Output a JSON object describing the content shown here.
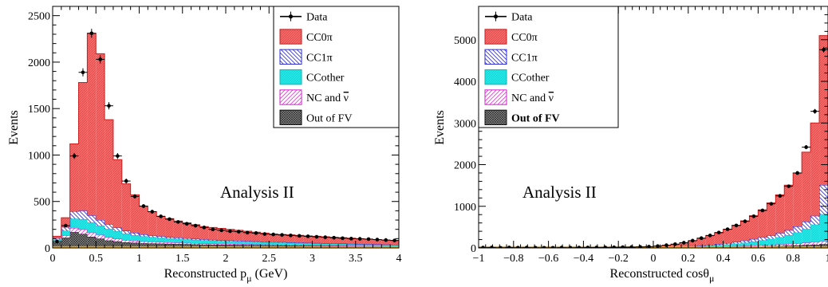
{
  "colors": {
    "cc0pi": "#f26b6b",
    "cc0pi_hatch": "#e03a3a",
    "cc1pi": "#2e2ed6",
    "ccother": "#22e6e6",
    "nc": "#e03ad8",
    "oofv": "#7a7a7a",
    "data": "#000000",
    "baseline": "#f5a500"
  },
  "chart_data": [
    {
      "type": "bar",
      "stacked": true,
      "annotation": "Analysis II",
      "xlabel_main": "Reconstructed p",
      "xlabel_sub": "μ",
      "xlabel_unit": " (GeV)",
      "ylabel": "Events",
      "xlim": [
        0,
        4
      ],
      "ylim": [
        0,
        2600
      ],
      "xticks": [
        0,
        0.5,
        1,
        1.5,
        2,
        2.5,
        3,
        3.5,
        4
      ],
      "xtick_labels": [
        "0",
        "0.5",
        "1",
        "1.5",
        "2",
        "2.5",
        "3",
        "3.5",
        "4"
      ],
      "yticks": [
        0,
        500,
        1000,
        1500,
        2000,
        2500
      ],
      "ytick_labels": [
        "0",
        "500",
        "1000",
        "1500",
        "2000",
        "2500"
      ],
      "bin_edges": [
        0,
        0.1,
        0.2,
        0.3,
        0.4,
        0.5,
        0.6,
        0.7,
        0.8,
        0.9,
        1.0,
        1.1,
        1.2,
        1.3,
        1.4,
        1.5,
        1.6,
        1.7,
        1.8,
        1.9,
        2.0,
        2.1,
        2.2,
        2.3,
        2.4,
        2.5,
        2.6,
        2.7,
        2.8,
        2.9,
        3.0,
        3.1,
        3.2,
        3.3,
        3.4,
        3.5,
        3.6,
        3.7,
        3.8,
        3.9,
        4.0
      ],
      "legend": {
        "position": "top-right",
        "entries": [
          {
            "key": "data",
            "label": "Data",
            "bold": false
          },
          {
            "key": "cc0pi",
            "label": "CC0π",
            "bold": false
          },
          {
            "key": "cc1pi",
            "label": "CC1π",
            "bold": false
          },
          {
            "key": "ccother",
            "label": "CCother",
            "bold": false
          },
          {
            "key": "nc",
            "label": "NC and ",
            "bar": "ν",
            "bold": false
          },
          {
            "key": "oofv",
            "label": "Out of FV",
            "bold": false
          }
        ]
      },
      "stack_order": [
        "oofv",
        "nc",
        "ccother",
        "cc1pi",
        "cc0pi"
      ],
      "series": [
        {
          "key": "oofv",
          "values": [
            60,
            110,
            170,
            150,
            120,
            100,
            80,
            70,
            60,
            55,
            50,
            48,
            46,
            44,
            42,
            40,
            38,
            36,
            35,
            34,
            33,
            32,
            31,
            30,
            29,
            28,
            27,
            26,
            25,
            24,
            23,
            22,
            21,
            20,
            19,
            18,
            17,
            16,
            15,
            14
          ]
        },
        {
          "key": "nc",
          "values": [
            10,
            25,
            45,
            50,
            45,
            40,
            35,
            30,
            25,
            22,
            20,
            18,
            17,
            16,
            15,
            14,
            13,
            12,
            11,
            10,
            10,
            9,
            9,
            8,
            8,
            8,
            7,
            7,
            7,
            6,
            6,
            6,
            6,
            5,
            5,
            5,
            5,
            5,
            4,
            4
          ]
        },
        {
          "key": "ccother",
          "values": [
            20,
            50,
            100,
            110,
            110,
            100,
            90,
            80,
            70,
            60,
            55,
            50,
            46,
            42,
            40,
            38,
            36,
            34,
            32,
            30,
            29,
            28,
            27,
            26,
            25,
            24,
            23,
            22,
            21,
            20,
            20,
            19,
            18,
            18,
            17,
            16,
            16,
            15,
            15,
            14
          ]
        },
        {
          "key": "cc1pi",
          "values": [
            15,
            40,
            80,
            90,
            75,
            60,
            50,
            40,
            30,
            25,
            20,
            18,
            16,
            14,
            13,
            12,
            11,
            10,
            9,
            9,
            8,
            8,
            7,
            7,
            6,
            6,
            6,
            5,
            5,
            5,
            4,
            4,
            4,
            4,
            3,
            3,
            3,
            3,
            3,
            3
          ]
        },
        {
          "key": "cc0pi",
          "values": [
            20,
            100,
            725,
            1380,
            1960,
            1790,
            1125,
            730,
            505,
            410,
            305,
            256,
            215,
            199,
            180,
            166,
            152,
            138,
            133,
            127,
            120,
            113,
            106,
            99,
            92,
            84,
            82,
            80,
            77,
            75,
            72,
            69,
            66,
            63,
            61,
            58,
            54,
            51,
            48,
            45
          ]
        }
      ],
      "data_points": [
        {
          "x": 0.05,
          "y": 70
        },
        {
          "x": 0.15,
          "y": 240
        },
        {
          "x": 0.25,
          "y": 990
        },
        {
          "x": 0.35,
          "y": 1890
        },
        {
          "x": 0.45,
          "y": 2310
        },
        {
          "x": 0.55,
          "y": 2030
        },
        {
          "x": 0.65,
          "y": 1530
        },
        {
          "x": 0.75,
          "y": 990
        },
        {
          "x": 0.85,
          "y": 720
        },
        {
          "x": 0.95,
          "y": 555
        },
        {
          "x": 1.05,
          "y": 450
        },
        {
          "x": 1.15,
          "y": 390
        },
        {
          "x": 1.25,
          "y": 340
        },
        {
          "x": 1.35,
          "y": 310
        },
        {
          "x": 1.45,
          "y": 280
        },
        {
          "x": 1.55,
          "y": 260
        },
        {
          "x": 1.65,
          "y": 240
        },
        {
          "x": 1.75,
          "y": 220
        },
        {
          "x": 1.85,
          "y": 200
        },
        {
          "x": 1.95,
          "y": 190
        },
        {
          "x": 2.05,
          "y": 180
        },
        {
          "x": 2.15,
          "y": 175
        },
        {
          "x": 2.25,
          "y": 165
        },
        {
          "x": 2.35,
          "y": 160
        },
        {
          "x": 2.45,
          "y": 150
        },
        {
          "x": 2.55,
          "y": 145
        },
        {
          "x": 2.65,
          "y": 140
        },
        {
          "x": 2.75,
          "y": 135
        },
        {
          "x": 2.85,
          "y": 130
        },
        {
          "x": 2.95,
          "y": 125
        },
        {
          "x": 3.05,
          "y": 120
        },
        {
          "x": 3.15,
          "y": 115
        },
        {
          "x": 3.25,
          "y": 110
        },
        {
          "x": 3.35,
          "y": 105
        },
        {
          "x": 3.45,
          "y": 100
        },
        {
          "x": 3.55,
          "y": 98
        },
        {
          "x": 3.65,
          "y": 95
        },
        {
          "x": 3.75,
          "y": 90
        },
        {
          "x": 3.85,
          "y": 85
        },
        {
          "x": 3.95,
          "y": 80
        }
      ]
    },
    {
      "type": "bar",
      "stacked": true,
      "annotation": "Analysis II",
      "xlabel_main": "Reconstructed cosθ",
      "xlabel_sub": "μ",
      "xlabel_unit": "",
      "ylabel": "Events",
      "xlim": [
        -1,
        1
      ],
      "ylim": [
        0,
        5800
      ],
      "xticks": [
        -1,
        -0.8,
        -0.6,
        -0.4,
        -0.2,
        0,
        0.2,
        0.4,
        0.6,
        0.8,
        1
      ],
      "xtick_labels": [
        "−1",
        "−0.8",
        "−0.6",
        "−0.4",
        "−0.2",
        "0",
        "0.2",
        "0.4",
        "0.6",
        "0.8",
        "1"
      ],
      "yticks": [
        0,
        1000,
        2000,
        3000,
        4000,
        5000
      ],
      "ytick_labels": [
        "0",
        "1000",
        "2000",
        "3000",
        "4000",
        "5000"
      ],
      "bin_edges": [
        -1,
        -0.95,
        -0.9,
        -0.85,
        -0.8,
        -0.75,
        -0.7,
        -0.65,
        -0.6,
        -0.55,
        -0.5,
        -0.45,
        -0.4,
        -0.35,
        -0.3,
        -0.25,
        -0.2,
        -0.15,
        -0.1,
        -0.05,
        0,
        0.05,
        0.1,
        0.15,
        0.2,
        0.25,
        0.3,
        0.35,
        0.4,
        0.45,
        0.5,
        0.55,
        0.6,
        0.65,
        0.7,
        0.75,
        0.8,
        0.85,
        0.9,
        0.95,
        1.0
      ],
      "legend": {
        "position": "top-left",
        "entries": [
          {
            "key": "data",
            "label": "Data",
            "bold": false
          },
          {
            "key": "cc0pi",
            "label": "CC0π",
            "bold": false
          },
          {
            "key": "cc1pi",
            "label": "CC1π",
            "bold": false
          },
          {
            "key": "ccother",
            "label": "CCother",
            "bold": false
          },
          {
            "key": "nc",
            "label": "NC and ",
            "bar": "ν",
            "bold": false
          },
          {
            "key": "oofv",
            "label": "Out of FV",
            "bold": true
          }
        ]
      },
      "stack_order": [
        "oofv",
        "nc",
        "ccother",
        "cc1pi",
        "cc0pi"
      ],
      "series": [
        {
          "key": "oofv",
          "values": [
            2,
            2,
            2,
            2,
            2,
            2,
            2,
            2,
            2,
            2,
            2,
            2,
            2,
            2,
            2,
            2,
            2,
            3,
            3,
            3,
            4,
            5,
            6,
            8,
            10,
            12,
            15,
            18,
            22,
            26,
            30,
            35,
            40,
            45,
            50,
            55,
            62,
            70,
            78,
            90
          ]
        },
        {
          "key": "nc",
          "values": [
            0,
            0,
            0,
            0,
            0,
            0,
            0,
            0,
            0,
            0,
            0,
            0,
            0,
            0,
            0,
            0,
            0,
            0,
            1,
            1,
            1,
            2,
            3,
            4,
            5,
            7,
            9,
            11,
            14,
            17,
            20,
            24,
            28,
            32,
            36,
            42,
            48,
            55,
            62,
            70
          ]
        },
        {
          "key": "ccother",
          "values": [
            0,
            0,
            0,
            0,
            0,
            0,
            0,
            0,
            0,
            0,
            0,
            0,
            0,
            0,
            0,
            0,
            1,
            1,
            2,
            3,
            4,
            6,
            9,
            12,
            16,
            22,
            30,
            38,
            48,
            60,
            75,
            95,
            115,
            140,
            170,
            210,
            260,
            330,
            420,
            650
          ]
        },
        {
          "key": "cc1pi",
          "values": [
            0,
            0,
            0,
            0,
            0,
            0,
            0,
            0,
            0,
            0,
            0,
            0,
            0,
            0,
            0,
            0,
            0,
            1,
            1,
            2,
            3,
            4,
            6,
            8,
            11,
            15,
            20,
            25,
            32,
            40,
            50,
            60,
            72,
            85,
            100,
            120,
            145,
            175,
            210,
            700
          ]
        },
        {
          "key": "cc0pi",
          "values": [
            1,
            1,
            1,
            1,
            1,
            1,
            1,
            1,
            1,
            2,
            2,
            2,
            3,
            4,
            5,
            6,
            8,
            10,
            14,
            20,
            30,
            45,
            65,
            95,
            130,
            175,
            220,
            270,
            330,
            400,
            475,
            560,
            660,
            780,
            920,
            1080,
            1285,
            1670,
            2230,
            3590
          ]
        }
      ],
      "data_points": [
        {
          "x": -0.975,
          "y": 8
        },
        {
          "x": -0.925,
          "y": 10
        },
        {
          "x": -0.875,
          "y": 5
        },
        {
          "x": -0.825,
          "y": 10
        },
        {
          "x": -0.775,
          "y": 6
        },
        {
          "x": -0.725,
          "y": 8
        },
        {
          "x": -0.675,
          "y": 6
        },
        {
          "x": -0.625,
          "y": 5
        },
        {
          "x": -0.575,
          "y": 5
        },
        {
          "x": -0.525,
          "y": 8
        },
        {
          "x": -0.475,
          "y": 6
        },
        {
          "x": -0.425,
          "y": 8
        },
        {
          "x": -0.375,
          "y": 10
        },
        {
          "x": -0.325,
          "y": 10
        },
        {
          "x": -0.275,
          "y": 12
        },
        {
          "x": -0.225,
          "y": 15
        },
        {
          "x": -0.175,
          "y": 18
        },
        {
          "x": -0.125,
          "y": 20
        },
        {
          "x": -0.075,
          "y": 25
        },
        {
          "x": -0.025,
          "y": 30
        },
        {
          "x": 0.025,
          "y": 45
        },
        {
          "x": 0.075,
          "y": 65
        },
        {
          "x": 0.125,
          "y": 90
        },
        {
          "x": 0.175,
          "y": 125
        },
        {
          "x": 0.225,
          "y": 175
        },
        {
          "x": 0.275,
          "y": 235
        },
        {
          "x": 0.325,
          "y": 300
        },
        {
          "x": 0.375,
          "y": 370
        },
        {
          "x": 0.425,
          "y": 450
        },
        {
          "x": 0.475,
          "y": 540
        },
        {
          "x": 0.525,
          "y": 640
        },
        {
          "x": 0.575,
          "y": 760
        },
        {
          "x": 0.625,
          "y": 900
        },
        {
          "x": 0.675,
          "y": 1060
        },
        {
          "x": 0.725,
          "y": 1250
        },
        {
          "x": 0.775,
          "y": 1480
        },
        {
          "x": 0.825,
          "y": 1800
        },
        {
          "x": 0.875,
          "y": 2420
        },
        {
          "x": 0.925,
          "y": 3280
        },
        {
          "x": 0.975,
          "y": 4760
        }
      ]
    }
  ]
}
